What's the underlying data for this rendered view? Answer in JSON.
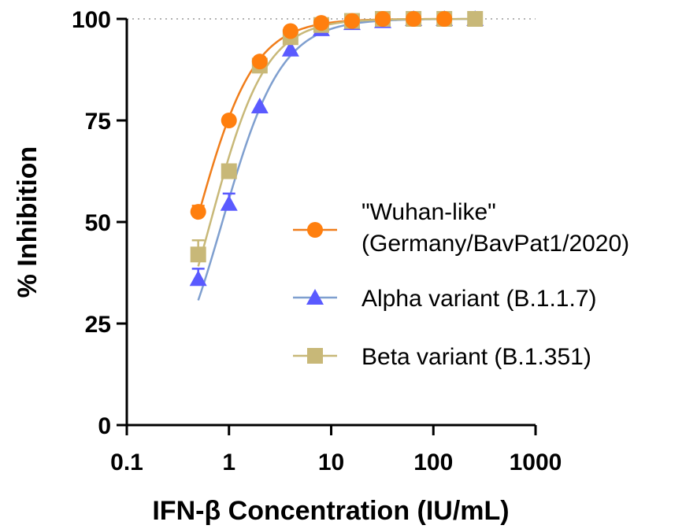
{
  "chart_data": {
    "type": "scatter",
    "xlabel": "IFN-β Concentration (IU/mL)",
    "ylabel": "% Inhibition",
    "xscale": "log",
    "xlim": [
      0.1,
      1000
    ],
    "ylim": [
      0,
      100
    ],
    "x_ticks": [
      0.1,
      1,
      10,
      100,
      1000
    ],
    "x_tick_labels": [
      "0.1",
      "1",
      "10",
      "100",
      "1000"
    ],
    "y_ticks": [
      0,
      25,
      50,
      75,
      100
    ],
    "y_tick_labels": [
      "0",
      "25",
      "50",
      "75",
      "100"
    ],
    "reference_line_y": 100,
    "legend_position": "right",
    "series": [
      {
        "name": "\"Wuhan-like\" (Germany/BavPat1/2020)",
        "legend_lines": [
          "\"Wuhan-like\"",
          "(Germany/BavPat1/2020)"
        ],
        "color": "#ff7f0e",
        "line_color": "#f07d1a",
        "marker": "circle",
        "x": [
          0.5,
          1,
          2,
          4,
          8,
          16,
          32,
          64,
          128
        ],
        "y": [
          52.5,
          75,
          89.5,
          97,
          99,
          99.5,
          100,
          100,
          100
        ],
        "err": [
          1.5,
          0,
          0.5,
          0,
          0,
          0,
          0,
          0,
          0
        ],
        "fit": {
          "bottom": 0,
          "top": 100,
          "ec50": 0.48,
          "hill": 1.55
        }
      },
      {
        "name": "Alpha variant (B.1.1.7)",
        "legend_lines": [
          "Alpha variant (B.1.1.7)"
        ],
        "color": "#5a5aff",
        "line_color": "#7f9fcf",
        "marker": "triangle",
        "x": [
          0.5,
          1,
          2,
          4,
          8,
          16,
          32,
          64,
          128,
          256
        ],
        "y": [
          36,
          54.5,
          78.5,
          92.5,
          97.5,
          99,
          99.5,
          100,
          100,
          100
        ],
        "err": [
          2.5,
          2.5,
          0,
          0,
          0,
          0,
          0,
          0,
          0,
          0
        ],
        "fit": {
          "bottom": 0,
          "top": 100,
          "ec50": 0.86,
          "hill": 1.5
        }
      },
      {
        "name": "Beta variant (B.1.351)",
        "legend_lines": [
          "Beta variant (B.1.351)"
        ],
        "color": "#c8b878",
        "line_color": "#c8b878",
        "marker": "square",
        "x": [
          0.5,
          1,
          2,
          4,
          8,
          16,
          32,
          64,
          128,
          256
        ],
        "y": [
          42,
          62.5,
          88.5,
          95.5,
          98.5,
          99.5,
          100,
          100,
          100,
          100
        ],
        "err": [
          3.5,
          0,
          0,
          0,
          0,
          0,
          0,
          0,
          0,
          0
        ],
        "fit": {
          "bottom": 0,
          "top": 100,
          "ec50": 0.66,
          "hill": 1.6
        }
      }
    ]
  }
}
